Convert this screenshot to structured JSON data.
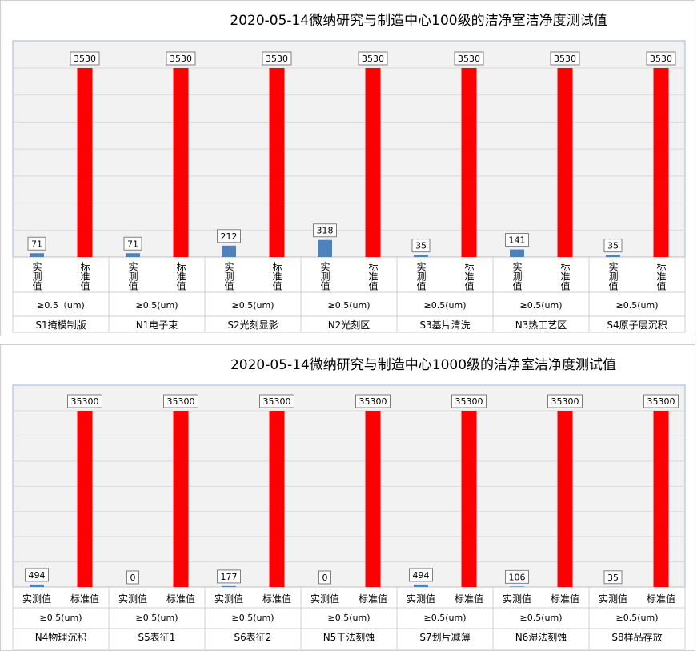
{
  "chart_data": [
    {
      "type": "bar",
      "title": "2020-05-14微纳研究与制造中心100级的洁净室洁净度测试值",
      "series_labels": [
        "实测值",
        "标准值"
      ],
      "series_colors": [
        "#4f81bd",
        "#ff0000"
      ],
      "label_orientation": "vertical",
      "ylim": [
        0,
        3530
      ],
      "grid": true,
      "legend": "none",
      "groups": [
        {
          "name": "S1掩模制版",
          "size_label": "≥0.5（um)",
          "measured": 71,
          "standard": 3530
        },
        {
          "name": "N1电子束",
          "size_label": "≥0.5(um)",
          "measured": 71,
          "standard": 3530
        },
        {
          "name": "S2光刻显影",
          "size_label": "≥0.5(um)",
          "measured": 212,
          "standard": 3530
        },
        {
          "name": "N2光刻区",
          "size_label": "≥0.5(um)",
          "measured": 318,
          "standard": 3530
        },
        {
          "name": "S3基片清洗",
          "size_label": "≥0.5(um)",
          "measured": 35,
          "standard": 3530
        },
        {
          "name": "N3热工艺区",
          "size_label": "≥0.5(um)",
          "measured": 141,
          "standard": 3530
        },
        {
          "name": "S4原子层沉积",
          "size_label": "≥0.5(um)",
          "measured": 35,
          "standard": 3530
        }
      ]
    },
    {
      "type": "bar",
      "title": "2020-05-14微纳研究与制造中心1000级的洁净室洁净度测试值",
      "series_labels": [
        "实测值",
        "标准值"
      ],
      "series_colors": [
        "#4f81bd",
        "#ff0000"
      ],
      "label_orientation": "horizontal",
      "ylim": [
        0,
        35300
      ],
      "grid": true,
      "legend": "none",
      "groups": [
        {
          "name": "N4物理沉积",
          "size_label": "≥0.5(um)",
          "measured": 494,
          "standard": 35300
        },
        {
          "name": "S5表征1",
          "size_label": "≥0.5(um)",
          "measured": 0,
          "standard": 35300
        },
        {
          "name": "S6表征2",
          "size_label": "≥0.5(um)",
          "measured": 177,
          "standard": 35300
        },
        {
          "name": "N5干法刻蚀",
          "size_label": "≥0.5(um)",
          "measured": 0,
          "standard": 35300
        },
        {
          "name": "S7划片减薄",
          "size_label": "≥0.5(um)",
          "measured": 494,
          "standard": 35300
        },
        {
          "name": "N6湿法刻蚀",
          "size_label": "≥0.5(um)",
          "measured": 106,
          "standard": 35300
        },
        {
          "name": "S8样品存放",
          "size_label": "≥0.5(um)",
          "measured": 35,
          "standard": 35300
        }
      ]
    }
  ]
}
